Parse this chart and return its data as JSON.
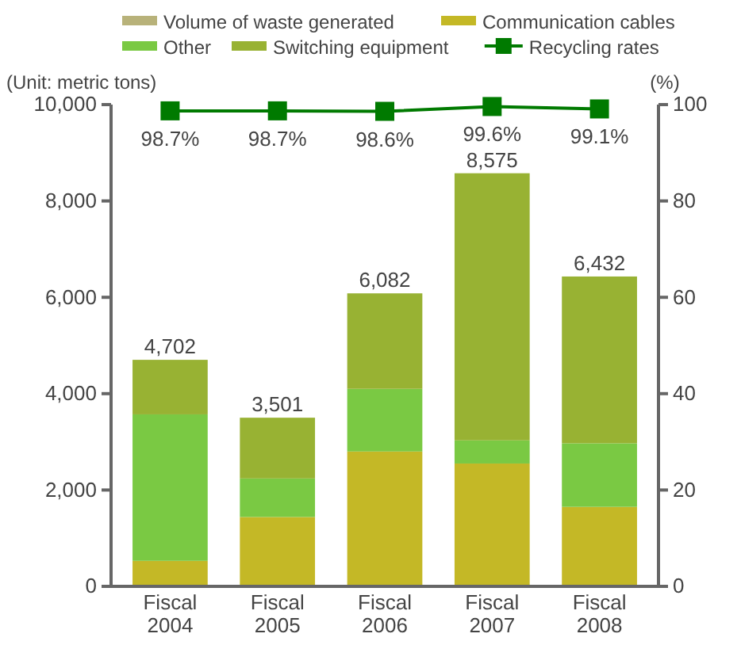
{
  "chart_data": {
    "type": "bar",
    "stacked": true,
    "categories": [
      "Fiscal 2004",
      "Fiscal 2005",
      "Fiscal 2006",
      "Fiscal 2007",
      "Fiscal 2008"
    ],
    "series": [
      {
        "name": "Volume of waste generated",
        "color": "#b8b27a",
        "values": [
          null,
          null,
          null,
          null,
          null
        ]
      },
      {
        "name": "Communication cables",
        "color": "#c4b826",
        "values": [
          530,
          1440,
          2800,
          2550,
          1650
        ]
      },
      {
        "name": "Other",
        "color": "#7ac943",
        "values": [
          3040,
          800,
          1300,
          480,
          1320
        ]
      },
      {
        "name": "Switching equipment",
        "color": "#98b233",
        "values": [
          1132,
          1261,
          1982,
          5545,
          3462
        ]
      },
      {
        "name": "Recycling rates",
        "type": "line",
        "axis": "y2",
        "color": "#007a00",
        "marker": "square",
        "values": [
          98.7,
          98.7,
          98.6,
          99.6,
          99.1
        ],
        "value_labels": [
          "98.7%",
          "98.7%",
          "98.6%",
          "99.6%",
          "99.1%"
        ]
      }
    ],
    "totals": [
      "4,702",
      "3,501",
      "6,082",
      "8,575",
      "6,432"
    ],
    "ylabel": "(Unit: metric tons)",
    "y2label": "(%)",
    "ylim": [
      0,
      10000
    ],
    "yticks": [
      {
        "value": 0,
        "label": "0"
      },
      {
        "value": 2000,
        "label": "2,000"
      },
      {
        "value": 4000,
        "label": "4,000"
      },
      {
        "value": 6000,
        "label": "6,000"
      },
      {
        "value": 8000,
        "label": "8,000"
      },
      {
        "value": 10000,
        "label": "10,000"
      }
    ],
    "y2lim": [
      0,
      100
    ],
    "y2ticks": [
      0,
      20,
      40,
      60,
      80,
      100
    ],
    "legend": "top",
    "grid": false
  }
}
